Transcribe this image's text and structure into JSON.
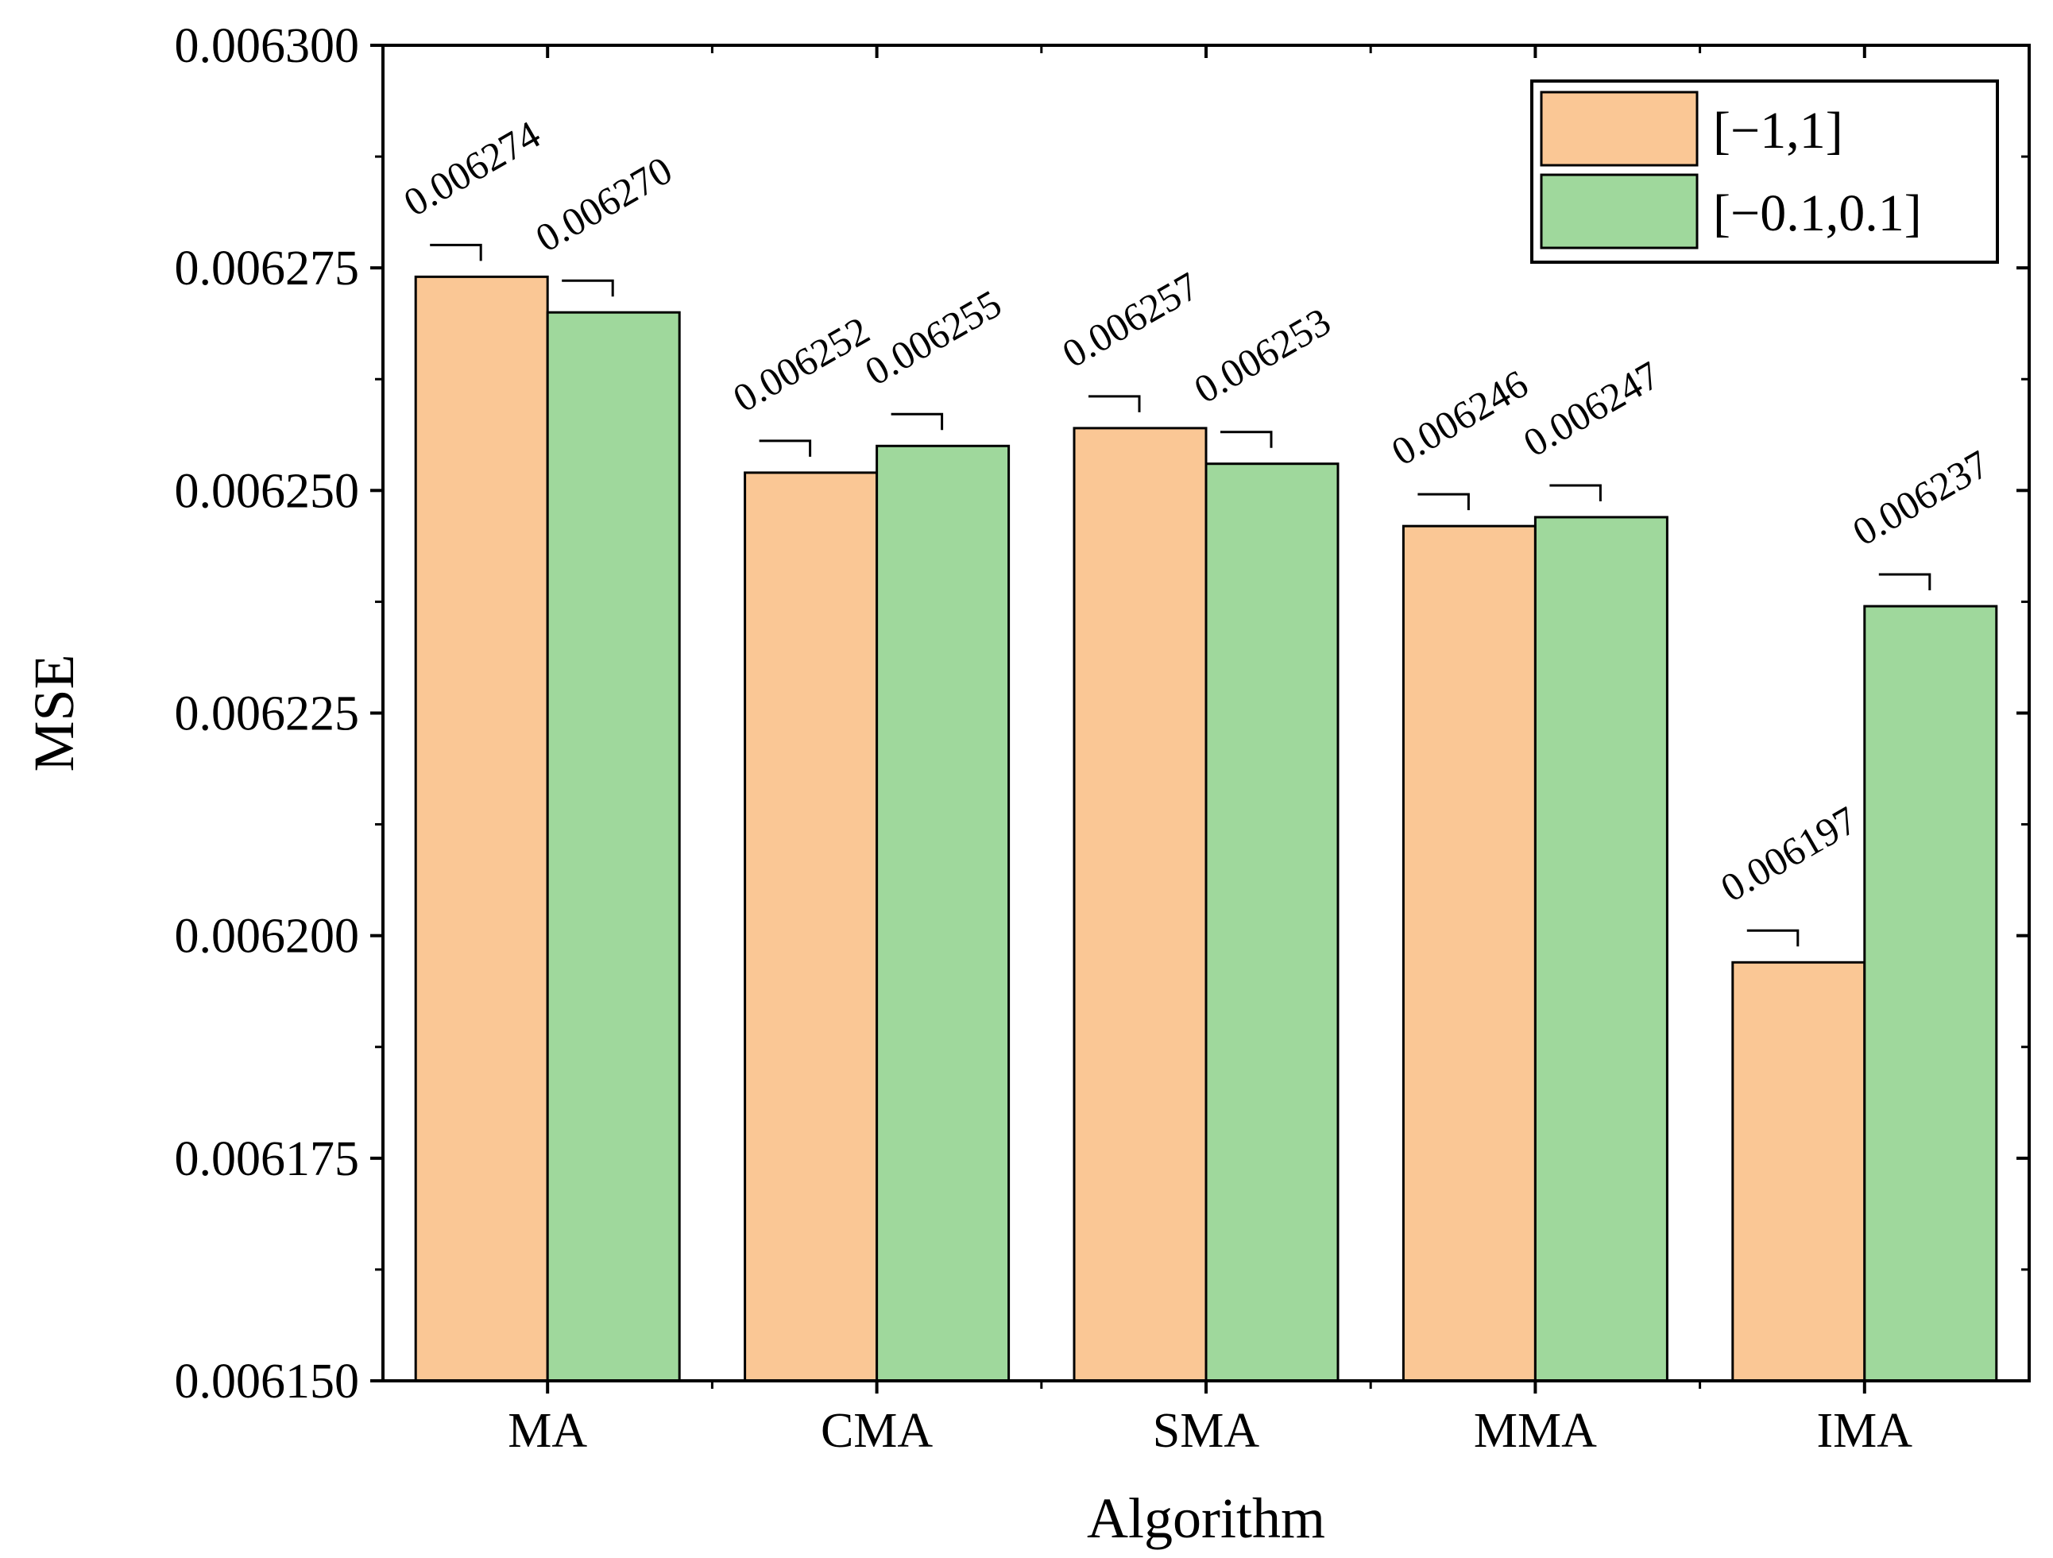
{
  "chart_data": {
    "type": "bar",
    "title": "",
    "xlabel": "Algorithm",
    "ylabel": "MSE",
    "categories": [
      "MA",
      "CMA",
      "SMA",
      "MMA",
      "IMA"
    ],
    "series": [
      {
        "name": "[−1,1]",
        "color": "#fac795",
        "values": [
          0.006274,
          0.006252,
          0.006257,
          0.006246,
          0.006197
        ]
      },
      {
        "name": "[−0.1,0.1]",
        "color": "#9fd89c",
        "values": [
          0.00627,
          0.006255,
          0.006253,
          0.006247,
          0.006237
        ]
      }
    ],
    "data_labels": [
      [
        "0.006274",
        "0.006252",
        "0.006257",
        "0.006246",
        "0.006197"
      ],
      [
        "0.006270",
        "0.006255",
        "0.006253",
        "0.006247",
        "0.006237"
      ]
    ],
    "ylim": [
      0.00615,
      0.0063
    ],
    "yticks": [
      "0.006150",
      "0.006175",
      "0.006200",
      "0.006225",
      "0.006250",
      "0.006275",
      "0.006300"
    ],
    "legend_position": "top-right",
    "grid": false
  }
}
